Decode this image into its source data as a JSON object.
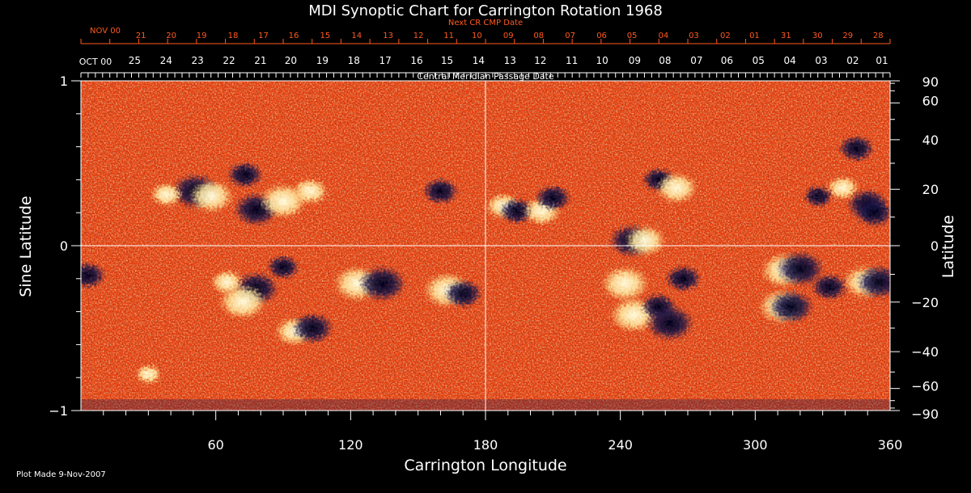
{
  "chart_data": {
    "type": "heatmap",
    "title": "MDI Synoptic Chart for Carrington Rotation 1968",
    "xlabel": "Carrington Longitude",
    "ylabel_left": "Sine Latitude",
    "ylabel_right": "Latitude",
    "xlim": [
      0,
      360
    ],
    "ylim": [
      -1,
      1
    ],
    "x_ticks": [
      60,
      120,
      180,
      240,
      300,
      360
    ],
    "x_tick_labels": [
      "60",
      "120",
      "180",
      "240",
      "300",
      "360"
    ],
    "y_left_ticks": [
      1,
      0,
      -1
    ],
    "y_left_tick_labels": [
      "1",
      "0",
      "−1"
    ],
    "y_right_ticks_deg": [
      90,
      60,
      40,
      20,
      0,
      -20,
      -40,
      -60,
      -90
    ],
    "y_right_tick_labels": [
      "90",
      "60",
      "40",
      "20",
      "0",
      "−20",
      "−40",
      "−60",
      "−90"
    ],
    "cmp_axis_label": "Central Meridian Passage Date",
    "cmp_month_label": "OCT 00",
    "cmp_dates": [
      "25",
      "24",
      "23",
      "22",
      "21",
      "20",
      "19",
      "18",
      "17",
      "16",
      "15",
      "14",
      "13",
      "12",
      "11",
      "10",
      "09",
      "08",
      "07",
      "06",
      "05",
      "04",
      "03",
      "02",
      "01"
    ],
    "cmp_date_longitudes": [
      27.5,
      41.5,
      55.5,
      69.5,
      83.5,
      97,
      111,
      125,
      139,
      153,
      166.5,
      180.5,
      194.5,
      208,
      222,
      235.5,
      250,
      263.5,
      277.5,
      291,
      305,
      319,
      333,
      347,
      361
    ],
    "next_cr_axis_label": "Next CR CMP Date",
    "next_cr_month_label": "NOV 00",
    "next_cr_dates": [
      "21",
      "20",
      "19",
      "18",
      "17",
      "16",
      "15",
      "14",
      "13",
      "12",
      "11",
      "10",
      "09",
      "08",
      "07",
      "06",
      "05",
      "04",
      "03",
      "02",
      "01",
      "31",
      "30",
      "29",
      "28"
    ],
    "next_cr_date_longitudes": [
      31,
      44.5,
      58,
      72,
      85.5,
      99,
      113,
      127,
      141,
      154.5,
      168,
      180.5,
      194.5,
      208,
      222,
      236,
      249.5,
      263.5,
      277,
      291,
      304,
      318,
      332,
      345.5,
      359
    ],
    "magnetic_regions": [
      {
        "lon": 51,
        "sinlat": 0.33,
        "polarity": "negative",
        "strength": 1.0
      },
      {
        "lon": 58,
        "sinlat": 0.3,
        "polarity": "positive",
        "strength": 0.9
      },
      {
        "lon": 73,
        "sinlat": 0.43,
        "polarity": "negative",
        "strength": 0.6
      },
      {
        "lon": 78,
        "sinlat": 0.22,
        "polarity": "negative",
        "strength": 0.9
      },
      {
        "lon": 90,
        "sinlat": 0.27,
        "polarity": "positive",
        "strength": 1.0
      },
      {
        "lon": 102,
        "sinlat": 0.33,
        "polarity": "positive",
        "strength": 0.6
      },
      {
        "lon": 160,
        "sinlat": 0.33,
        "polarity": "negative",
        "strength": 0.6
      },
      {
        "lon": 38,
        "sinlat": 0.31,
        "polarity": "positive",
        "strength": 0.5
      },
      {
        "lon": 30,
        "sinlat": -0.78,
        "polarity": "positive",
        "strength": 0.3
      },
      {
        "lon": 78,
        "sinlat": -0.26,
        "polarity": "negative",
        "strength": 0.9
      },
      {
        "lon": 72,
        "sinlat": -0.34,
        "polarity": "positive",
        "strength": 1.0
      },
      {
        "lon": 65,
        "sinlat": -0.22,
        "polarity": "positive",
        "strength": 0.5
      },
      {
        "lon": 90,
        "sinlat": -0.13,
        "polarity": "negative",
        "strength": 0.5
      },
      {
        "lon": 95,
        "sinlat": -0.52,
        "polarity": "positive",
        "strength": 0.7
      },
      {
        "lon": 103,
        "sinlat": -0.5,
        "polarity": "negative",
        "strength": 0.8
      },
      {
        "lon": 123,
        "sinlat": -0.23,
        "polarity": "positive",
        "strength": 1.0
      },
      {
        "lon": 134,
        "sinlat": -0.23,
        "polarity": "negative",
        "strength": 1.0
      },
      {
        "lon": 163,
        "sinlat": -0.27,
        "polarity": "positive",
        "strength": 1.0
      },
      {
        "lon": 170,
        "sinlat": -0.29,
        "polarity": "negative",
        "strength": 0.7
      },
      {
        "lon": 3,
        "sinlat": -0.18,
        "polarity": "negative",
        "strength": 0.6
      },
      {
        "lon": 188,
        "sinlat": 0.24,
        "polarity": "positive",
        "strength": 0.6
      },
      {
        "lon": 194,
        "sinlat": 0.21,
        "polarity": "negative",
        "strength": 0.6
      },
      {
        "lon": 205,
        "sinlat": 0.21,
        "polarity": "positive",
        "strength": 0.7
      },
      {
        "lon": 210,
        "sinlat": 0.29,
        "polarity": "negative",
        "strength": 0.6
      },
      {
        "lon": 245,
        "sinlat": 0.03,
        "polarity": "negative",
        "strength": 0.9
      },
      {
        "lon": 251,
        "sinlat": 0.03,
        "polarity": "positive",
        "strength": 0.8
      },
      {
        "lon": 257,
        "sinlat": 0.4,
        "polarity": "negative",
        "strength": 0.5
      },
      {
        "lon": 265,
        "sinlat": 0.35,
        "polarity": "positive",
        "strength": 0.8
      },
      {
        "lon": 242,
        "sinlat": -0.23,
        "polarity": "positive",
        "strength": 1.0
      },
      {
        "lon": 246,
        "sinlat": -0.42,
        "polarity": "positive",
        "strength": 1.0
      },
      {
        "lon": 262,
        "sinlat": -0.47,
        "polarity": "negative",
        "strength": 1.0
      },
      {
        "lon": 257,
        "sinlat": -0.37,
        "polarity": "negative",
        "strength": 0.6
      },
      {
        "lon": 268,
        "sinlat": -0.2,
        "polarity": "negative",
        "strength": 0.6
      },
      {
        "lon": 313,
        "sinlat": -0.15,
        "polarity": "positive",
        "strength": 1.0
      },
      {
        "lon": 320,
        "sinlat": -0.14,
        "polarity": "negative",
        "strength": 1.0
      },
      {
        "lon": 312,
        "sinlat": -0.37,
        "polarity": "positive",
        "strength": 1.0
      },
      {
        "lon": 316,
        "sinlat": -0.37,
        "polarity": "negative",
        "strength": 0.9
      },
      {
        "lon": 333,
        "sinlat": -0.25,
        "polarity": "negative",
        "strength": 0.6
      },
      {
        "lon": 349,
        "sinlat": -0.22,
        "polarity": "positive",
        "strength": 0.9
      },
      {
        "lon": 355,
        "sinlat": -0.22,
        "polarity": "negative",
        "strength": 0.9
      },
      {
        "lon": 339,
        "sinlat": 0.35,
        "polarity": "positive",
        "strength": 0.5
      },
      {
        "lon": 350,
        "sinlat": 0.25,
        "polarity": "negative",
        "strength": 0.8
      },
      {
        "lon": 353,
        "sinlat": 0.2,
        "polarity": "negative",
        "strength": 0.7
      },
      {
        "lon": 345,
        "sinlat": 0.59,
        "polarity": "negative",
        "strength": 0.6
      },
      {
        "lon": 328,
        "sinlat": 0.3,
        "polarity": "negative",
        "strength": 0.4
      }
    ]
  },
  "footer": {
    "plot_made": "Plot Made  9-Nov-2007"
  },
  "colors": {
    "background": "#000000",
    "axis": "#ffffff",
    "next_cr_text": "#ff5a1e",
    "field_neutral": "#e8400e",
    "field_positive": "#fff6c8",
    "field_negative": "#14143c"
  }
}
